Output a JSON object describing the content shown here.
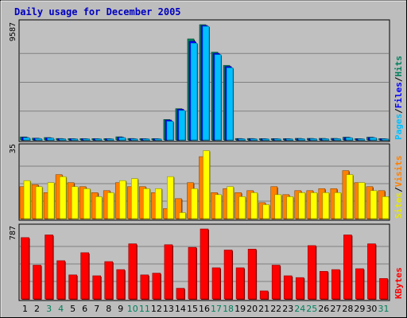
{
  "chart_data": [
    {
      "type": "bar",
      "panel": "top",
      "title": "Daily usage for December 2005",
      "categories": [
        "1",
        "2",
        "3",
        "4",
        "5",
        "6",
        "7",
        "8",
        "9",
        "10",
        "11",
        "12",
        "13",
        "14",
        "15",
        "16",
        "17",
        "18",
        "19",
        "20",
        "21",
        "22",
        "23",
        "24",
        "25",
        "26",
        "27",
        "28",
        "29",
        "30",
        "31"
      ],
      "weekend_days": [
        "3",
        "4",
        "10",
        "11",
        "17",
        "18",
        "24",
        "25",
        "31"
      ],
      "ymax_label": "9587",
      "ylim": [
        0,
        9587
      ],
      "grid": true,
      "series": [
        {
          "name": "Hits",
          "color": "#00805c",
          "values": [
            250,
            150,
            200,
            120,
            110,
            110,
            110,
            110,
            260,
            120,
            110,
            110,
            1700,
            2600,
            8400,
            9587,
            7300,
            6200,
            120,
            120,
            110,
            110,
            110,
            130,
            130,
            130,
            130,
            230,
            110,
            230,
            110
          ]
        },
        {
          "name": "Files",
          "color": "#0000ff",
          "values": [
            210,
            130,
            170,
            100,
            95,
            95,
            95,
            95,
            220,
            100,
            95,
            95,
            1650,
            2550,
            8200,
            9520,
            7200,
            6100,
            100,
            100,
            95,
            95,
            95,
            110,
            110,
            110,
            110,
            200,
            95,
            200,
            95
          ]
        },
        {
          "name": "Pages",
          "color": "#00c0ff",
          "values": [
            180,
            110,
            150,
            90,
            85,
            85,
            85,
            85,
            190,
            90,
            85,
            85,
            1550,
            2450,
            8050,
            9450,
            7100,
            6000,
            90,
            90,
            85,
            85,
            85,
            100,
            100,
            100,
            100,
            180,
            85,
            180,
            85
          ]
        }
      ],
      "legend_order": [
        "Pages",
        "Files",
        "Hits"
      ]
    },
    {
      "type": "bar",
      "panel": "middle",
      "categories": [
        "1",
        "2",
        "3",
        "4",
        "5",
        "6",
        "7",
        "8",
        "9",
        "10",
        "11",
        "12",
        "13",
        "14",
        "15",
        "16",
        "17",
        "18",
        "19",
        "20",
        "21",
        "22",
        "23",
        "24",
        "25",
        "26",
        "27",
        "28",
        "29",
        "30",
        "31"
      ],
      "ymax_label": "35",
      "ylim": [
        0,
        35
      ],
      "grid": true,
      "series": [
        {
          "name": "Visits",
          "color": "#ff8000",
          "values": [
            16,
            17,
            13,
            22,
            18,
            16,
            13,
            14,
            18,
            16,
            16,
            13,
            5,
            10,
            18,
            31,
            13,
            15,
            13,
            14,
            8,
            16,
            12,
            14,
            14,
            15,
            15,
            24,
            18,
            16,
            14
          ]
        },
        {
          "name": "Sites",
          "color": "#ffff00",
          "values": [
            19,
            16,
            18,
            21,
            16,
            15,
            11,
            13,
            19,
            20,
            15,
            15,
            21,
            3,
            15,
            34,
            12,
            16,
            11,
            13,
            7,
            12,
            11,
            13,
            13,
            13,
            13,
            22,
            18,
            14,
            11
          ]
        }
      ],
      "legend_order": [
        "Sites",
        "Visits"
      ]
    },
    {
      "type": "bar",
      "panel": "bottom",
      "categories": [
        "1",
        "2",
        "3",
        "4",
        "5",
        "6",
        "7",
        "8",
        "9",
        "10",
        "11",
        "12",
        "13",
        "14",
        "15",
        "16",
        "17",
        "18",
        "19",
        "20",
        "21",
        "22",
        "23",
        "24",
        "25",
        "26",
        "27",
        "28",
        "29",
        "30",
        "31"
      ],
      "ymax_label": "787",
      "ylim": [
        0,
        787
      ],
      "grid": true,
      "series": [
        {
          "name": "KBytes",
          "color": "#ff0000",
          "values": [
            690,
            380,
            720,
            430,
            270,
            520,
            260,
            420,
            330,
            620,
            270,
            290,
            610,
            120,
            580,
            787,
            350,
            550,
            350,
            560,
            90,
            380,
            260,
            240,
            600,
            310,
            330,
            720,
            340,
            620,
            230
          ]
        }
      ],
      "legend_order": [
        "KBytes"
      ]
    }
  ]
}
